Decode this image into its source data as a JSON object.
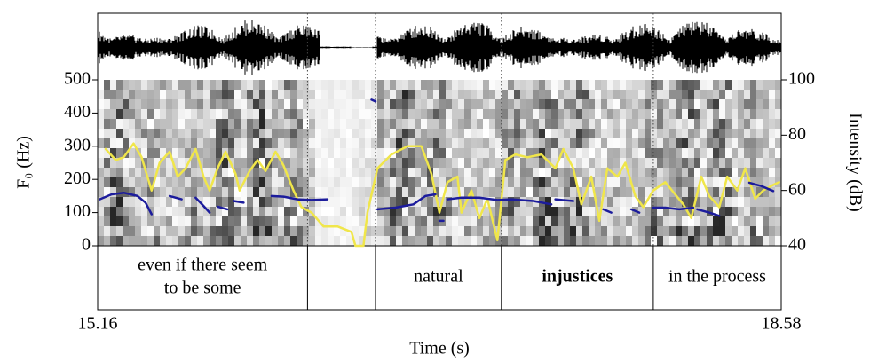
{
  "chart_data": {
    "type": "line",
    "xlabel": "Time (s)",
    "ylabel": "F₀ (Hz)",
    "y2label": "Intensity (dB)",
    "xlim": [
      15.16,
      18.58
    ],
    "xticks": [
      15.16,
      18.58
    ],
    "ylim": [
      0,
      500
    ],
    "yticks": [
      0,
      100,
      200,
      300,
      400,
      500
    ],
    "y2lim": [
      40,
      100
    ],
    "y2ticks": [
      40,
      60,
      80,
      100
    ],
    "series": [
      {
        "color": "#1c1c9c",
        "x": [
          15.17,
          15.23,
          15.29,
          15.36,
          15.4,
          15.43,
          null,
          15.52,
          15.58,
          null,
          15.65,
          15.69,
          15.72,
          null,
          15.76,
          15.81,
          null,
          15.84,
          15.89,
          null,
          16.03,
          16.09,
          16.16,
          16.23,
          16.31,
          null,
          16.53,
          16.55,
          null,
          16.56,
          16.65,
          16.74,
          16.8,
          16.85,
          null,
          16.87,
          16.89,
          null,
          16.91,
          16.98,
          17.07,
          17.16,
          17.23,
          17.34,
          17.43,
          null,
          17.45,
          17.54,
          null,
          17.69,
          17.73,
          null,
          17.83,
          17.87,
          null,
          17.94,
          18.0,
          18.07,
          18.14,
          null,
          18.16,
          18.22,
          18.27,
          null,
          18.42,
          18.48,
          18.54
        ],
        "values": [
          140,
          155,
          160,
          150,
          130,
          95,
          null,
          150,
          140,
          null,
          145,
          120,
          100,
          null,
          118,
          110,
          null,
          135,
          130,
          null,
          150,
          148,
          140,
          138,
          140,
          null,
          440,
          435,
          null,
          110,
          115,
          125,
          150,
          155,
          null,
          75,
          75,
          null,
          140,
          145,
          145,
          138,
          140,
          135,
          125,
          null,
          140,
          135,
          null,
          110,
          100,
          null,
          110,
          100,
          null,
          115,
          115,
          110,
          115,
          null,
          110,
          100,
          90,
          null,
          190,
          180,
          165
        ]
      },
      {
        "color": "#f0e64a",
        "axis": "y2",
        "x": [
          15.2,
          15.25,
          15.29,
          15.34,
          15.38,
          15.43,
          15.47,
          15.52,
          15.56,
          15.6,
          15.65,
          15.69,
          15.72,
          15.76,
          15.8,
          15.85,
          15.87,
          15.92,
          15.96,
          16.0,
          16.05,
          16.09,
          16.14,
          16.18,
          16.23,
          16.29,
          16.36,
          16.43,
          16.45,
          16.49,
          16.51,
          16.56,
          16.63,
          16.71,
          16.78,
          16.83,
          16.87,
          16.91,
          16.96,
          16.98,
          17.03,
          17.07,
          17.11,
          17.16,
          17.2,
          17.25,
          17.31,
          17.38,
          17.45,
          17.49,
          17.54,
          17.58,
          17.63,
          17.67,
          17.71,
          17.76,
          17.8,
          17.85,
          17.89,
          17.94,
          18.0,
          18.09,
          18.13,
          18.18,
          18.22,
          18.27,
          18.31,
          18.36,
          18.4,
          18.45,
          18.49,
          18.54,
          18.57
        ],
        "values": [
          75,
          71,
          72,
          77,
          72,
          60,
          70,
          74,
          65,
          68,
          75,
          65,
          60,
          68,
          74,
          66,
          60,
          67,
          71,
          67,
          74,
          69,
          60,
          54,
          52,
          47,
          47,
          45,
          40,
          40,
          52,
          68,
          73,
          76,
          76,
          66,
          52,
          63,
          65,
          52,
          60,
          50,
          57,
          42,
          71,
          73,
          72,
          73,
          68,
          75,
          68,
          55,
          65,
          49,
          68,
          65,
          70,
          58,
          54,
          60,
          63,
          55,
          50,
          65,
          58,
          54,
          65,
          60,
          68,
          57,
          60,
          62,
          63
        ]
      }
    ],
    "tier": {
      "intervals": [
        {
          "lines": [
            "even if there seem",
            "to be some"
          ],
          "start": 15.16,
          "end": 16.21
        },
        {
          "start": 16.21,
          "end": 16.55
        },
        {
          "lines": [
            "natural"
          ],
          "start": 16.55,
          "end": 17.18
        },
        {
          "lines": [
            "injustices"
          ],
          "bold": true,
          "start": 17.18,
          "end": 17.94
        },
        {
          "lines": [
            "in the process"
          ],
          "start": 17.94,
          "end": 18.58
        }
      ]
    }
  }
}
